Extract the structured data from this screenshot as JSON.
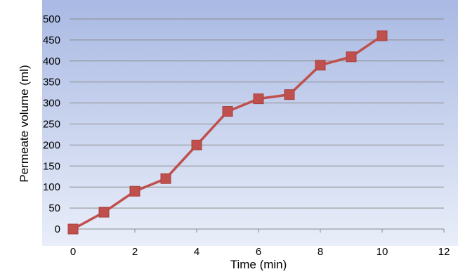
{
  "chart_data": {
    "type": "line",
    "title": "",
    "xlabel": "Time (min)",
    "ylabel": "Permeate volume (ml)",
    "xlim": [
      0,
      12
    ],
    "ylim": [
      0,
      500
    ],
    "x_ticks": [
      0,
      2,
      4,
      6,
      8,
      10,
      12
    ],
    "y_ticks": [
      0,
      50,
      100,
      150,
      200,
      250,
      300,
      350,
      400,
      450,
      500
    ],
    "grid": "horizontal",
    "legend": "none",
    "series": [
      {
        "color": "#c0504d",
        "marker": "square",
        "points": [
          {
            "x": 0,
            "y": 0
          },
          {
            "x": 1,
            "y": 40
          },
          {
            "x": 2,
            "y": 90
          },
          {
            "x": 3,
            "y": 120
          },
          {
            "x": 4,
            "y": 200
          },
          {
            "x": 5,
            "y": 280
          },
          {
            "x": 6,
            "y": 310
          },
          {
            "x": 7,
            "y": 320
          },
          {
            "x": 8,
            "y": 390
          },
          {
            "x": 9,
            "y": 410
          },
          {
            "x": 10,
            "y": 460
          }
        ]
      }
    ],
    "colors": {
      "plot_top": "#a9b9e3",
      "plot_bottom": "#e9eef9",
      "grid": "#8c8c8c",
      "axis": "#8c8c8c"
    }
  }
}
